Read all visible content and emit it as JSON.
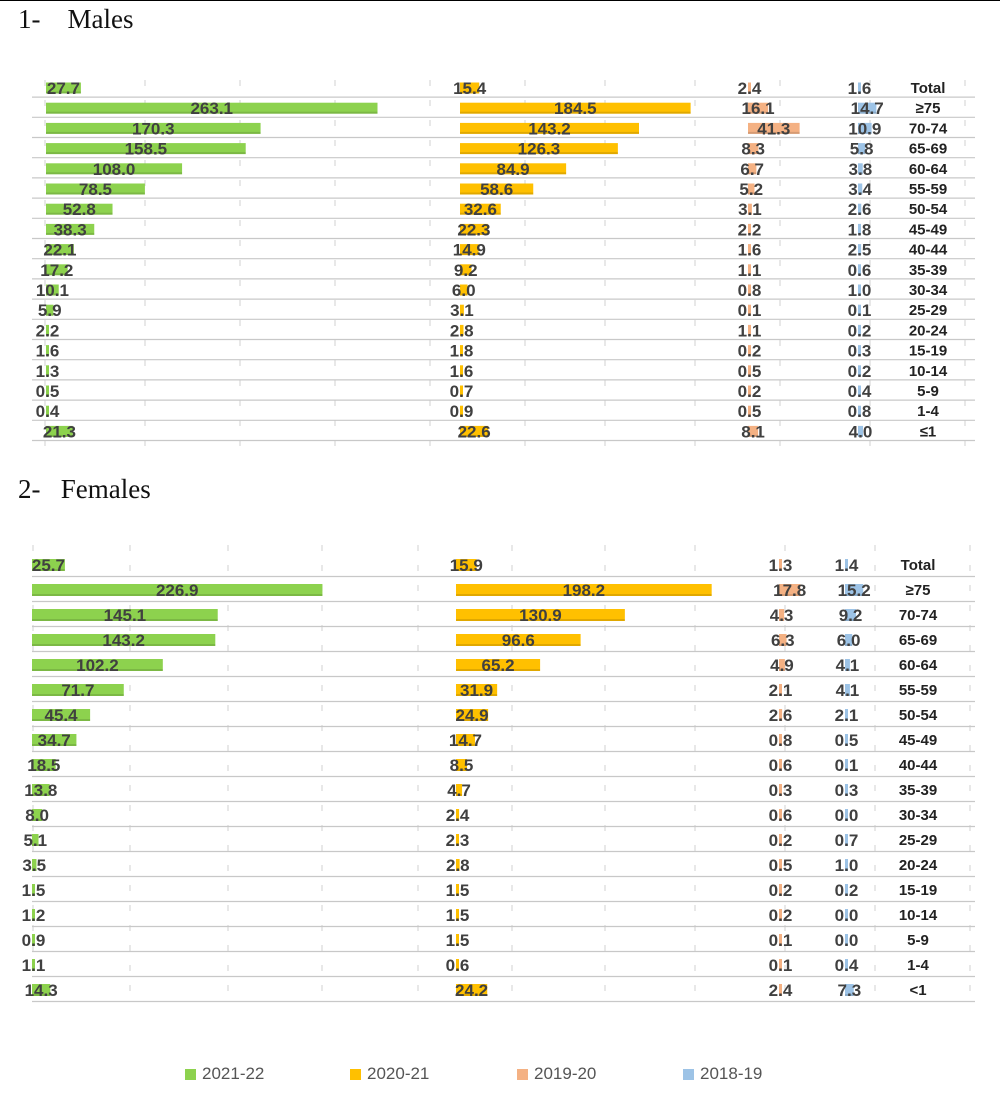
{
  "headings": {
    "males": "1-    Males",
    "females": "2-   Females"
  },
  "colors": {
    "2021-22": "#8dd24e",
    "2020-21": "#ffc000",
    "2019-20": "#f4b183",
    "2018-19": "#9dc3e6",
    "grid": "#d0d0d0",
    "barShadow": "#6c9c3a"
  },
  "legend": [
    {
      "label": "2021-22",
      "color": "#8dd24e"
    },
    {
      "label": "2020-21",
      "color": "#ffc000"
    },
    {
      "label": "2019-20",
      "color": "#f4b183"
    },
    {
      "label": "2018-19",
      "color": "#9dc3e6"
    }
  ],
  "chart_data": [
    {
      "type": "bar",
      "title": "Males",
      "orientation": "horizontal",
      "categories": [
        "Total",
        "≥75",
        "70-74",
        "65-69",
        "60-64",
        "55-59",
        "50-54",
        "45-49",
        "40-44",
        "35-39",
        "30-34",
        "25-29",
        "20-24",
        "15-19",
        "10-14",
        "5-9",
        "1-4",
        "≤1"
      ],
      "series": [
        {
          "name": "2021-22",
          "values": [
            "27.7",
            "263.1",
            "170.3",
            "158.5",
            "108.0",
            "78.5",
            "52.8",
            "38.3",
            "22.1",
            "17.2",
            "10.1",
            "5.9",
            "2.2",
            "1.6",
            "1.3",
            "0.5",
            "0.4",
            "21.3"
          ]
        },
        {
          "name": "2020-21",
          "values": [
            "15.4",
            "184.5",
            "143.2",
            "126.3",
            "84.9",
            "58.6",
            "32.6",
            "22.3",
            "14.9",
            "9.2",
            "6.0",
            "3.1",
            "2.8",
            "1.8",
            "1.6",
            "0.7",
            "0.9",
            "22.6"
          ]
        },
        {
          "name": "2019-20",
          "values": [
            "2.4",
            "16.1",
            "41.3",
            "8.3",
            "6.7",
            "5.2",
            "3.1",
            "2.2",
            "1.6",
            "1.1",
            "0.8",
            "0.1",
            "1.1",
            "0.2",
            "0.5",
            "0.2",
            "0.5",
            "8.1"
          ]
        },
        {
          "name": "2018-19",
          "values": [
            "1.6",
            "14.7",
            "10.9",
            "5.8",
            "3.8",
            "3.4",
            "2.6",
            "1.8",
            "2.5",
            "0.6",
            "1.0",
            "0.1",
            "0.2",
            "0.3",
            "0.2",
            "0.4",
            "0.8",
            "4.0"
          ]
        }
      ]
    },
    {
      "type": "bar",
      "title": "Females",
      "orientation": "horizontal",
      "categories": [
        "Total",
        "≥75",
        "70-74",
        "65-69",
        "60-64",
        "55-59",
        "50-54",
        "45-49",
        "40-44",
        "35-39",
        "30-34",
        "25-29",
        "20-24",
        "15-19",
        "10-14",
        "5-9",
        "1-4",
        "<1"
      ],
      "series": [
        {
          "name": "2021-22",
          "values": [
            "25.7",
            "226.9",
            "145.1",
            "143.2",
            "102.2",
            "71.7",
            "45.4",
            "34.7",
            "18.5",
            "13.8",
            "8.0",
            "5.1",
            "3.5",
            "1.5",
            "1.2",
            "0.9",
            "1.1",
            "14.3"
          ]
        },
        {
          "name": "2020-21",
          "values": [
            "15.9",
            "198.2",
            "130.9",
            "96.6",
            "65.2",
            "31.9",
            "24.9",
            "14.7",
            "8.5",
            "4.7",
            "2.4",
            "2.3",
            "2.8",
            "1.5",
            "1.5",
            "1.5",
            "0.6",
            "24.2"
          ]
        },
        {
          "name": "2019-20",
          "values": [
            "1.3",
            "17.8",
            "4.3",
            "6.3",
            "4.9",
            "2.1",
            "2.6",
            "0.8",
            "0.6",
            "0.3",
            "0.6",
            "0.2",
            "0.5",
            "0.2",
            "0.2",
            "0.1",
            "0.1",
            "2.4"
          ]
        },
        {
          "name": "2018-19",
          "values": [
            "1.4",
            "15.2",
            "9.2",
            "6.0",
            "4.1",
            "4.1",
            "2.1",
            "0.5",
            "0.1",
            "0.3",
            "0.0",
            "0.7",
            "1.0",
            "0.2",
            "0.0",
            "0.0",
            "0.4",
            "7.3"
          ]
        }
      ]
    }
  ]
}
